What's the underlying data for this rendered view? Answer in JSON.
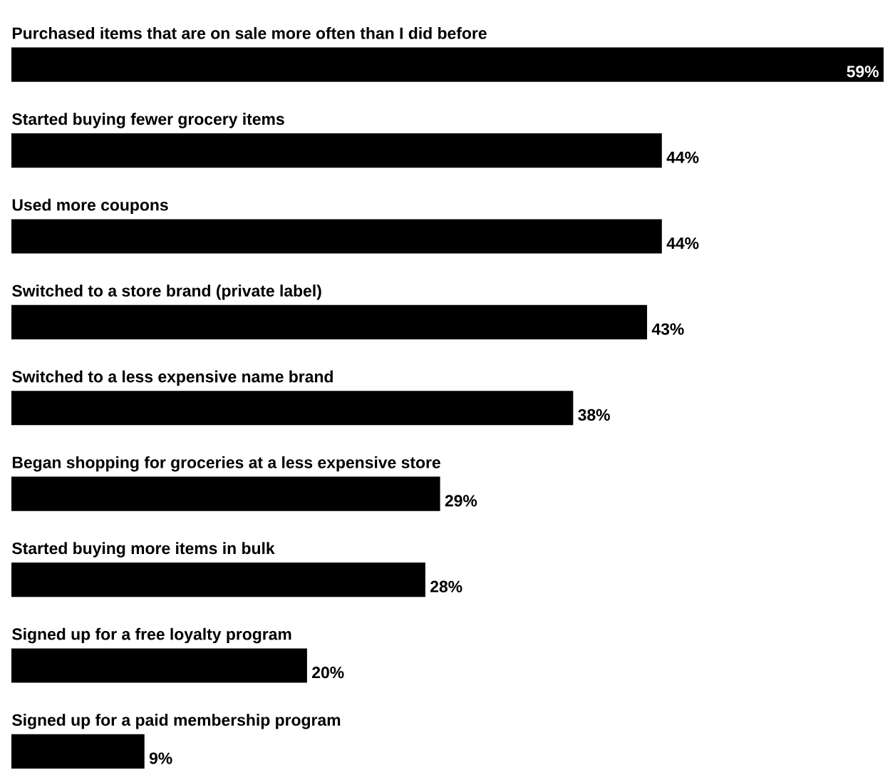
{
  "chart_data": {
    "type": "bar",
    "orientation": "horizontal",
    "categories": [
      "Purchased items that are on sale more often than I did before",
      "Started buying fewer grocery items",
      "Used more coupons",
      "Switched to a store brand (private label)",
      "Switched to a less expensive name brand",
      "Began shopping for groceries at a less expensive store",
      "Started buying more items in bulk",
      "Signed up for a free loyalty program",
      "Signed up for a paid membership program"
    ],
    "values": [
      59,
      44,
      44,
      43,
      38,
      29,
      28,
      20,
      9
    ],
    "value_labels": [
      "59%",
      "44%",
      "44%",
      "43%",
      "38%",
      "29%",
      "28%",
      "20%",
      "9%"
    ],
    "color": "#000000"
  }
}
